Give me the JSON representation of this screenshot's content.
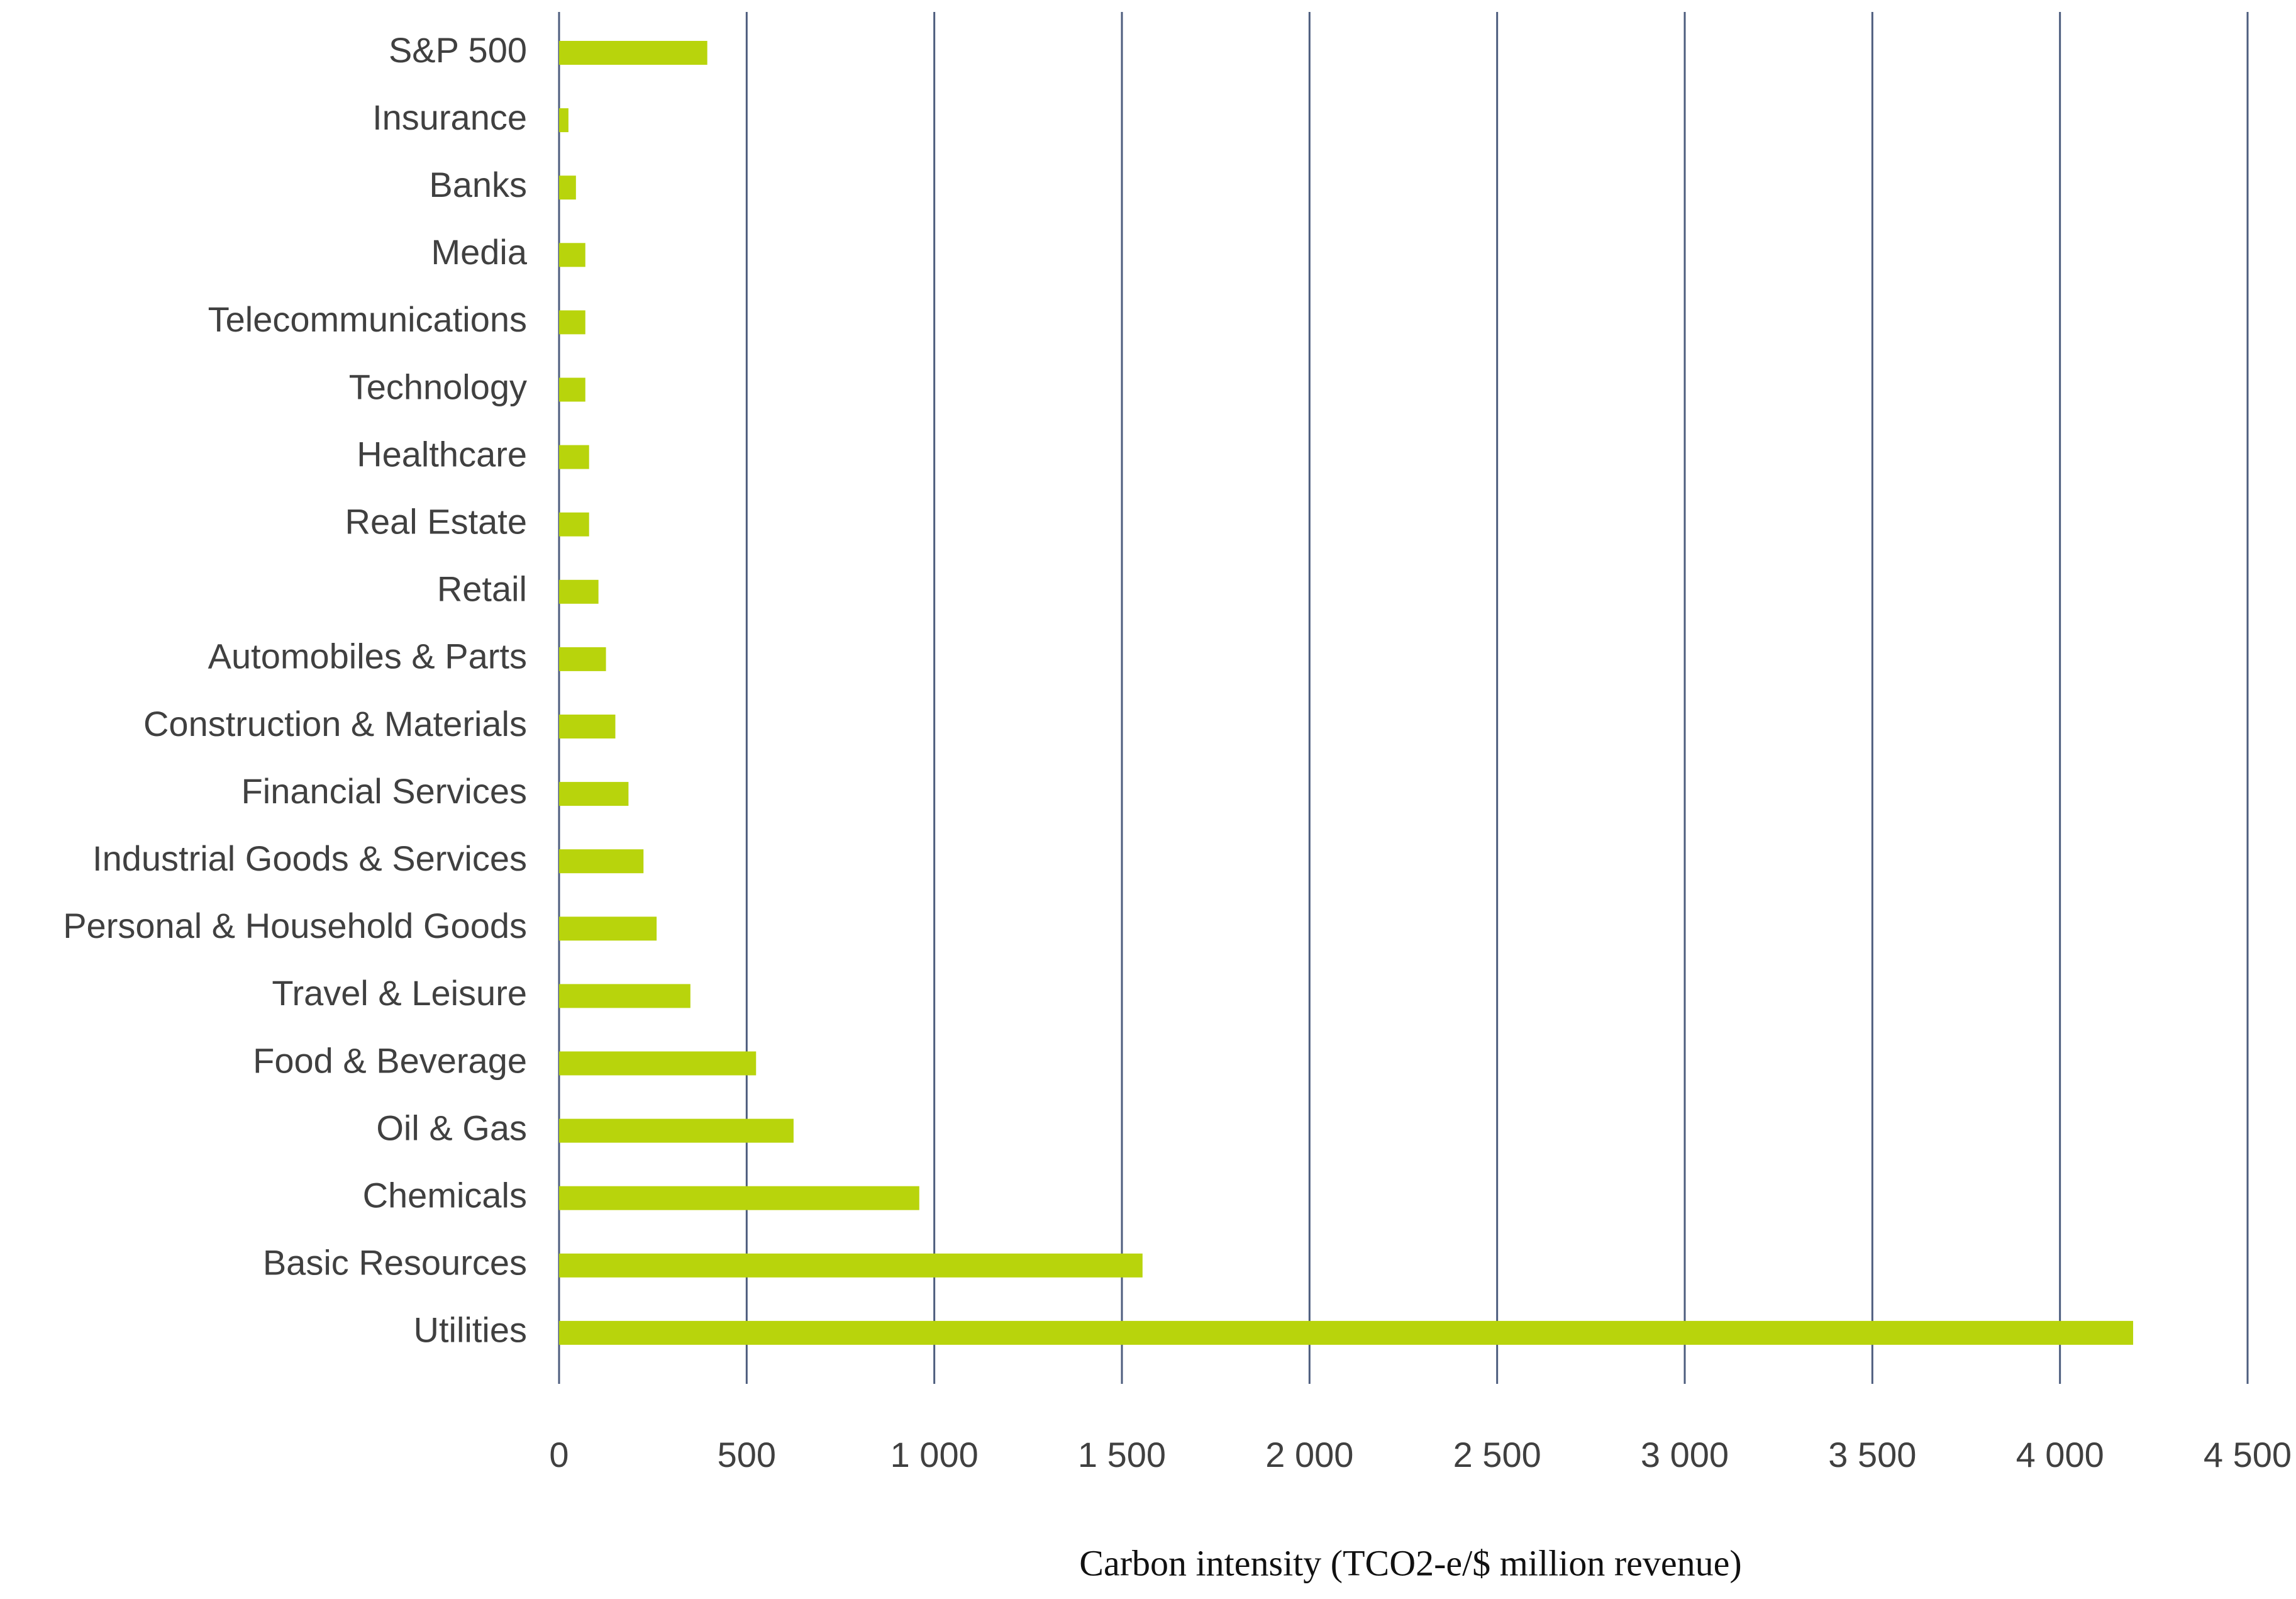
{
  "chart_data": {
    "type": "hbar",
    "xlabel": "Carbon intensity (TCO2-e/$ million revenue)",
    "categories": [
      "S&P 500",
      "Insurance",
      "Banks",
      "Media",
      "Telecommunications",
      "Technology",
      "Healthcare",
      "Real Estate",
      "Retail",
      "Automobiles & Parts",
      "Construction & Materials",
      "Financial Services",
      "Industrial Goods & Services",
      "Personal & Household Goods",
      "Travel & Leisure",
      "Food & Beverage",
      "Oil & Gas",
      "Chemicals",
      "Basic Resources",
      "Utilities"
    ],
    "values": [
      395,
      25,
      45,
      70,
      70,
      70,
      80,
      80,
      105,
      125,
      150,
      185,
      225,
      260,
      350,
      525,
      625,
      960,
      1555,
      4195
    ],
    "color": "#b8d40c",
    "xlim": [
      0,
      4500
    ],
    "xticks": [
      0,
      500,
      {
        "value": 1000,
        "label": "1 000"
      },
      {
        "value": 1500,
        "label": "1 500"
      },
      {
        "value": 2000,
        "label": "2 000"
      },
      {
        "value": 2500,
        "label": "2 500"
      },
      {
        "value": 3000,
        "label": "3 000"
      },
      {
        "value": 3500,
        "label": "3 500"
      },
      {
        "value": 4000,
        "label": "4 000"
      },
      {
        "value": 4500,
        "label": "4 500"
      }
    ],
    "grid": true
  }
}
